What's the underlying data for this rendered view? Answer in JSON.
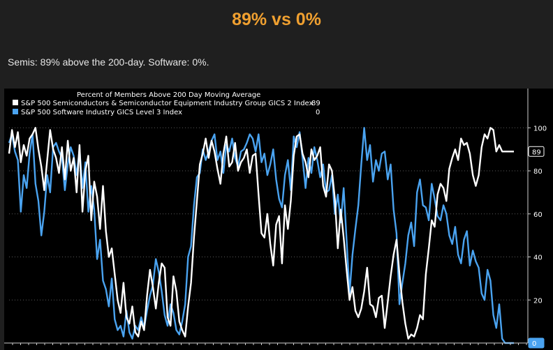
{
  "headline": "89% vs 0%",
  "subline": "Semis: 89% above the 200-day. Software: 0%.",
  "colors": {
    "page_background": "#1f1f1f",
    "headline": "#f0a030",
    "chart_background": "#000000",
    "semis_series": "#ffffff",
    "software_series": "#4aa3f0",
    "grid": "#5a5a5a"
  },
  "chart_data": {
    "type": "line",
    "title": "Percent of Members Above 200 Day Moving Average",
    "xlabel": "",
    "ylabel": "",
    "ylim": [
      0,
      115
    ],
    "yticks": [
      20,
      40,
      60,
      80,
      100
    ],
    "y_axis_position": "right",
    "grid": "dotted horizontal",
    "legend_position": "top-left",
    "series": [
      {
        "name": "S&P 500 Semiconductors & Semiconductor Equipment Industry Group GICS 2 Index",
        "last_value": "89",
        "color": "#ffffff",
        "values": [
          88,
          99,
          91,
          98,
          84,
          92,
          87,
          95,
          97,
          100,
          90,
          82,
          71,
          85,
          99,
          90,
          86,
          79,
          91,
          76,
          94,
          80,
          86,
          70,
          92,
          61,
          80,
          87,
          57,
          75,
          68,
          53,
          73,
          52,
          40,
          44,
          32,
          20,
          14,
          28,
          12,
          9,
          17,
          5,
          3,
          10,
          6,
          22,
          34,
          26,
          16,
          28,
          37,
          35,
          12,
          8,
          31,
          24,
          10,
          6,
          3,
          17,
          28,
          49,
          66,
          83,
          88,
          95,
          86,
          94,
          89,
          81,
          74,
          88,
          96,
          82,
          84,
          93,
          80,
          84,
          86,
          90,
          79,
          87,
          88,
          69,
          51,
          49,
          60,
          46,
          36,
          55,
          59,
          37,
          64,
          53,
          66,
          87,
          96,
          97,
          88,
          84,
          77,
          90,
          85,
          87,
          91,
          73,
          68,
          83,
          80,
          67,
          44,
          62,
          49,
          34,
          20,
          26,
          15,
          12,
          16,
          24,
          35,
          18,
          17,
          12,
          21,
          22,
          7,
          19,
          31,
          41,
          48,
          32,
          19,
          9,
          2,
          4,
          3,
          7,
          13,
          11,
          32,
          44,
          57,
          54,
          69,
          74,
          72,
          66,
          81,
          86,
          90,
          85,
          95,
          92,
          93,
          88,
          78,
          73,
          78,
          91,
          97,
          95,
          100,
          99,
          89,
          92,
          89,
          89,
          89,
          89,
          89
        ]
      },
      {
        "name": "S&P 500 Software Industry GICS Level 3 Index",
        "last_value": "0",
        "color": "#4aa3f0",
        "values": [
          93,
          97,
          89,
          85,
          61,
          78,
          72,
          88,
          97,
          74,
          66,
          50,
          61,
          78,
          70,
          91,
          93,
          89,
          86,
          71,
          83,
          91,
          87,
          78,
          90,
          72,
          84,
          61,
          73,
          62,
          39,
          48,
          29,
          25,
          17,
          30,
          11,
          6,
          8,
          3,
          15,
          5,
          2,
          8,
          6,
          12,
          7,
          15,
          22,
          27,
          39,
          33,
          24,
          13,
          8,
          18,
          14,
          6,
          4,
          10,
          18,
          40,
          45,
          64,
          77,
          79,
          90,
          85,
          89,
          94,
          97,
          85,
          89,
          79,
          92,
          89,
          95,
          86,
          82,
          89,
          90,
          93,
          97,
          95,
          89,
          97,
          84,
          88,
          78,
          83,
          90,
          76,
          67,
          63,
          78,
          85,
          71,
          96,
          91,
          98,
          86,
          72,
          86,
          79,
          91,
          85,
          77,
          83,
          70,
          71,
          78,
          60,
          69,
          56,
          72,
          48,
          23,
          41,
          53,
          64,
          83,
          100,
          85,
          92,
          75,
          85,
          80,
          88,
          89,
          76,
          83,
          62,
          51,
          18,
          28,
          37,
          50,
          56,
          45,
          70,
          76,
          64,
          63,
          57,
          74,
          67,
          59,
          57,
          64,
          60,
          50,
          46,
          54,
          41,
          37,
          48,
          52,
          36,
          43,
          38,
          35,
          23,
          20,
          34,
          29,
          13,
          7,
          18,
          2,
          0,
          0,
          0,
          0
        ]
      }
    ]
  }
}
